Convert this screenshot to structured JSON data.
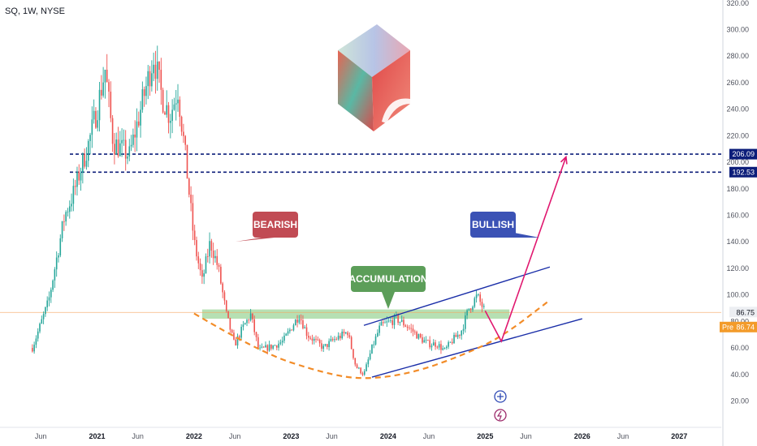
{
  "header": {
    "title": "SQ, 1W, NYSE"
  },
  "chart_data": {
    "type": "candlestick",
    "symbol": "SQ",
    "interval": "1W",
    "exchange": "NYSE",
    "title": "SQ, 1W, NYSE",
    "y_ticks": [
      20,
      40,
      60,
      80,
      100,
      120,
      140,
      160,
      180,
      200,
      220,
      240,
      260,
      280,
      300,
      320
    ],
    "y_tick_labels": [
      "20.00",
      "40.00",
      "60.00",
      "80.00",
      "100.00",
      "120.00",
      "140.00",
      "160.00",
      "180.00",
      "200.00",
      "220.00",
      "240.00",
      "260.00",
      "280.00",
      "300.00",
      "320.00"
    ],
    "ylim": [
      5,
      322
    ],
    "x_axis": [
      {
        "label": "Jun",
        "year_label": false
      },
      {
        "label": "2021",
        "year_label": true
      },
      {
        "label": "Jun",
        "year_label": false
      },
      {
        "label": "2022",
        "year_label": true
      },
      {
        "label": "Jun",
        "year_label": false
      },
      {
        "label": "2023",
        "year_label": true
      },
      {
        "label": "Jun",
        "year_label": false
      },
      {
        "label": "2024",
        "year_label": true
      },
      {
        "label": "Jun",
        "year_label": false
      },
      {
        "label": "2025",
        "year_label": true
      },
      {
        "label": "Jun",
        "year_label": false
      },
      {
        "label": "2026",
        "year_label": true
      },
      {
        "label": "Jun",
        "year_label": false
      },
      {
        "label": "2027",
        "year_label": true
      }
    ],
    "price_path": [
      [
        "2020-05",
        60
      ],
      [
        "2020-07",
        95
      ],
      [
        "2020-09",
        160
      ],
      [
        "2020-10",
        175
      ],
      [
        "2020-12",
        215
      ],
      [
        "2021-01",
        240
      ],
      [
        "2021-02",
        270
      ],
      [
        "2021-03",
        215
      ],
      [
        "2021-05",
        205
      ],
      [
        "2021-06",
        230
      ],
      [
        "2021-08",
        280
      ],
      [
        "2021-09",
        250
      ],
      [
        "2021-10",
        235
      ],
      [
        "2021-11",
        255
      ],
      [
        "2021-12",
        200
      ],
      [
        "2022-01",
        140
      ],
      [
        "2022-02",
        110
      ],
      [
        "2022-03",
        140
      ],
      [
        "2022-04",
        120
      ],
      [
        "2022-05",
        85
      ],
      [
        "2022-06",
        62
      ],
      [
        "2022-07",
        75
      ],
      [
        "2022-08",
        85
      ],
      [
        "2022-09",
        58
      ],
      [
        "2022-11",
        62
      ],
      [
        "2022-12",
        65
      ],
      [
        "2023-01",
        75
      ],
      [
        "2023-02",
        85
      ],
      [
        "2023-03",
        70
      ],
      [
        "2023-05",
        60
      ],
      [
        "2023-06",
        65
      ],
      [
        "2023-08",
        72
      ],
      [
        "2023-09",
        46
      ],
      [
        "2023-10",
        40
      ],
      [
        "2023-11",
        60
      ],
      [
        "2023-12",
        76
      ],
      [
        "2024-02",
        82
      ],
      [
        "2024-03",
        78
      ],
      [
        "2024-04",
        73
      ],
      [
        "2024-05",
        67
      ],
      [
        "2024-06",
        63
      ],
      [
        "2024-07",
        63
      ],
      [
        "2024-08",
        58
      ],
      [
        "2024-09",
        66
      ],
      [
        "2024-10",
        72
      ],
      [
        "2024-11",
        90
      ],
      [
        "2024-12",
        99
      ],
      [
        "2025-01",
        87
      ]
    ],
    "horizontal_lines": [
      {
        "value": 206.09,
        "label": "206.09",
        "color": "#0d1e7a",
        "style": "dashed"
      },
      {
        "value": 192.53,
        "label": "192.53",
        "color": "#0d1e7a",
        "style": "dashed"
      },
      {
        "value": 86.75,
        "label": "86.75",
        "color": "#f7a35c",
        "style": "thin"
      }
    ],
    "last_price": {
      "label": "86.75",
      "value": 86.75
    },
    "pre_market": {
      "prefix": "Pre",
      "label": "86.74",
      "value": 86.74
    },
    "accumulation_zone": {
      "from": "2022-02",
      "to": "2025-04",
      "low": 82,
      "high": 89
    },
    "channel": {
      "upper": [
        [
          "2023-10",
          77
        ],
        [
          "2025-09",
          121
        ]
      ],
      "lower": [
        [
          "2023-11",
          38
        ],
        [
          "2026-01",
          82
        ]
      ]
    },
    "arc_projection": [
      [
        "2022-01",
        86
      ],
      [
        "2022-09",
        57
      ],
      [
        "2023-05",
        41
      ],
      [
        "2023-10",
        36
      ],
      [
        "2024-04",
        41
      ],
      [
        "2024-10",
        54
      ],
      [
        "2025-03",
        68
      ],
      [
        "2025-09",
        96
      ]
    ],
    "projection_arrow": [
      [
        "2025-01",
        88
      ],
      [
        "2025-03",
        65
      ],
      [
        "2025-11",
        204
      ]
    ],
    "annotations": [
      {
        "text": "BEARISH",
        "color": "#c14b54"
      },
      {
        "text": "ACCUMULATION",
        "color": "#5c9e59"
      },
      {
        "text": "BULLISH",
        "color": "#3b52b5"
      }
    ],
    "colors": {
      "up": "#26a69a",
      "down": "#ef5350",
      "dashed_levels": "#0d1e7a",
      "channel": "#1a2ea8",
      "arc": "#f28c28",
      "projection": "#e0176f",
      "zone": "#8fcf8b"
    },
    "grid": false
  }
}
